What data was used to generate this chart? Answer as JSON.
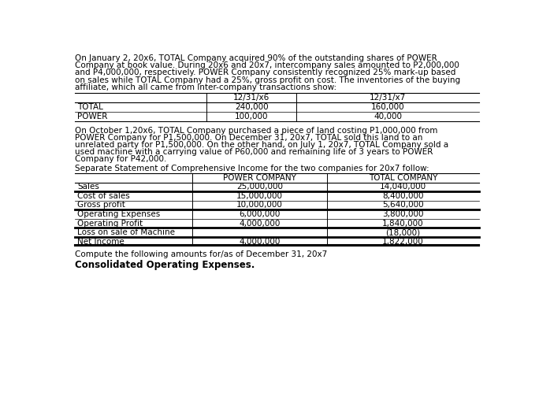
{
  "para1_lines": [
    "On January 2, 20x6, TOTAL Company acquired 90% of the outstanding shares of POWER",
    "Company at book value. During 20x6 and 20x7, intercompany sales amounted to P2,000,000",
    "and P4,000,000, respectively. POWER Company consistently recognized 25% mark-up based",
    "on sales while TOTAL Company had a 25%, gross profit on cost. The inventories of the buying",
    "affiliate, which all came from Inter-company transactions show:"
  ],
  "table1_headers": [
    "",
    "12/31/x6",
    "12/31/x7"
  ],
  "table1_rows": [
    [
      "TOTAL",
      "240,000",
      "160,000"
    ],
    [
      "POWER",
      "100,000",
      "40,000"
    ]
  ],
  "para2_lines": [
    "On October 1,20x6, TOTAL Company purchased a piece of land costing P1,000,000 from",
    "POWER Company for P1,500,000. On December 31, 20x7, TOTAL sold this land to an",
    "unrelated party for P1,500,000. On the other hand, on July 1, 20x7, TOTAL Company sold a",
    "used machine with a carrying value of P60,000 and remaining life of 3 years to POWER",
    "Company for P42,000."
  ],
  "para3": "Separate Statement of Comprehensive Income for the two companies for 20x7 follow:",
  "table2_headers": [
    "",
    "POWER COMPANY",
    "TOTAL COMPANY"
  ],
  "table2_rows": [
    [
      "Sales",
      "25,000,000",
      "14,040,000"
    ],
    [
      "Cost of sales",
      "15,000,000",
      "8,400,000"
    ],
    [
      "Gross profit",
      "10,000,000",
      "5,640,000"
    ],
    [
      "Operating Expenses",
      "6,000,000",
      "3,800,000"
    ],
    [
      "Operating Profit",
      "4,000,000",
      "1,840,000"
    ],
    [
      "Loss on sale of Machine",
      "",
      "(18,000)"
    ],
    [
      "Net Income",
      "4,000,000",
      "1,822,000"
    ]
  ],
  "footer1": "Compute the following amounts for/as of December 31, 20x7",
  "footer2": "Consolidated Operating Expenses.",
  "bg_color": "#ffffff",
  "text_color": "#000000"
}
